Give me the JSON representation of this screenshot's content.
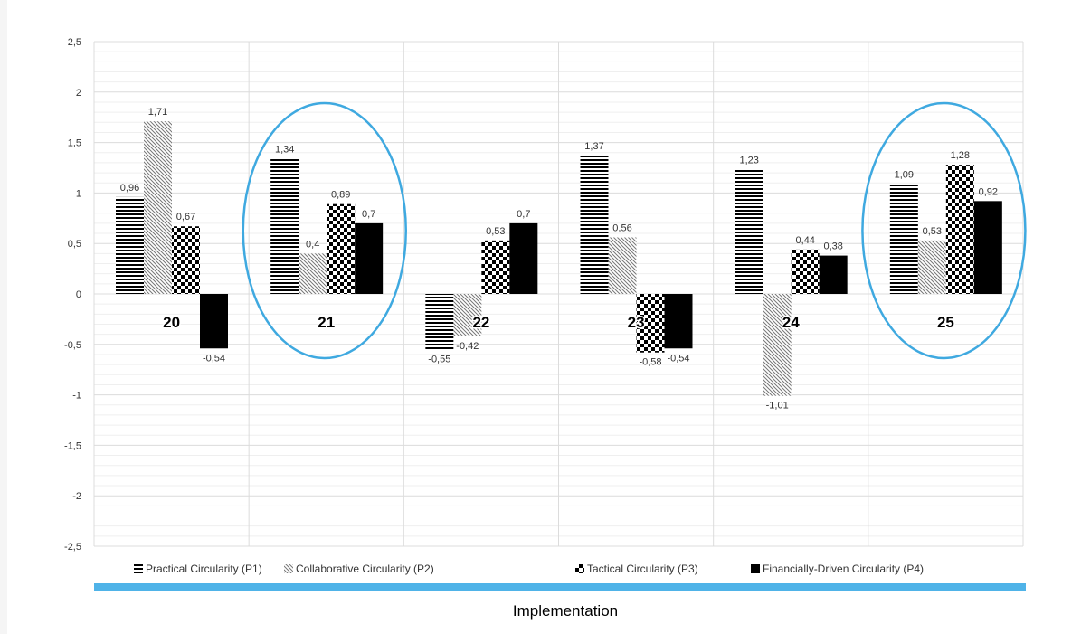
{
  "chart_data": {
    "type": "bar",
    "categories": [
      "20",
      "21",
      "22",
      "23",
      "24",
      "25"
    ],
    "series": [
      {
        "name": "Practical Circularity (P1)",
        "pattern": "horizontal-stripes",
        "values": [
          0.96,
          1.34,
          -0.55,
          1.37,
          1.23,
          1.09
        ],
        "labels": [
          "0,96",
          "1,34",
          "-0,55",
          "1,37",
          "1,23",
          "1,09"
        ]
      },
      {
        "name": "Collaborative Circularity (P2)",
        "pattern": "diagonal-stripes",
        "values": [
          1.71,
          0.4,
          -0.42,
          0.56,
          -1.01,
          0.53
        ],
        "labels": [
          "1,71",
          "0,4",
          "-0,42",
          "0,56",
          "-1,01",
          "0,53"
        ]
      },
      {
        "name": "Tactical Circularity (P3)",
        "pattern": "checkerboard",
        "values": [
          0.67,
          0.89,
          0.53,
          -0.58,
          0.44,
          1.28
        ],
        "labels": [
          "0,67",
          "0,89",
          "0,53",
          "-0,58",
          "0,44",
          "1,28"
        ]
      },
      {
        "name": "Financially-Driven Circularity (P4)",
        "pattern": "solid-black",
        "values": [
          -0.54,
          0.7,
          0.7,
          -0.54,
          0.38,
          0.92
        ],
        "labels": [
          "-0,54",
          "0,7",
          "0,7",
          "-0,54",
          "0,38",
          "0,92"
        ]
      }
    ],
    "ylim": [
      -2.5,
      2.5
    ],
    "yticks": [
      2.5,
      2,
      1.5,
      1,
      0.5,
      0,
      -0.5,
      -1,
      -1.5,
      -2,
      -2.5
    ],
    "ytick_labels": [
      "2,5",
      "2",
      "1,5",
      "1",
      "0,5",
      "0",
      "-0,5",
      "-1",
      "-1,5",
      "-2",
      "-2,5"
    ],
    "xlabel": "Implementation",
    "grid": true,
    "legend_position": "bottom",
    "highlighted_categories": [
      "21",
      "25"
    ],
    "colors": {
      "bars": "#000000",
      "highlight_ellipse": "#3fa9e0",
      "axis_bar": "#4fb3e8",
      "grid": "#e6e6e6"
    }
  }
}
